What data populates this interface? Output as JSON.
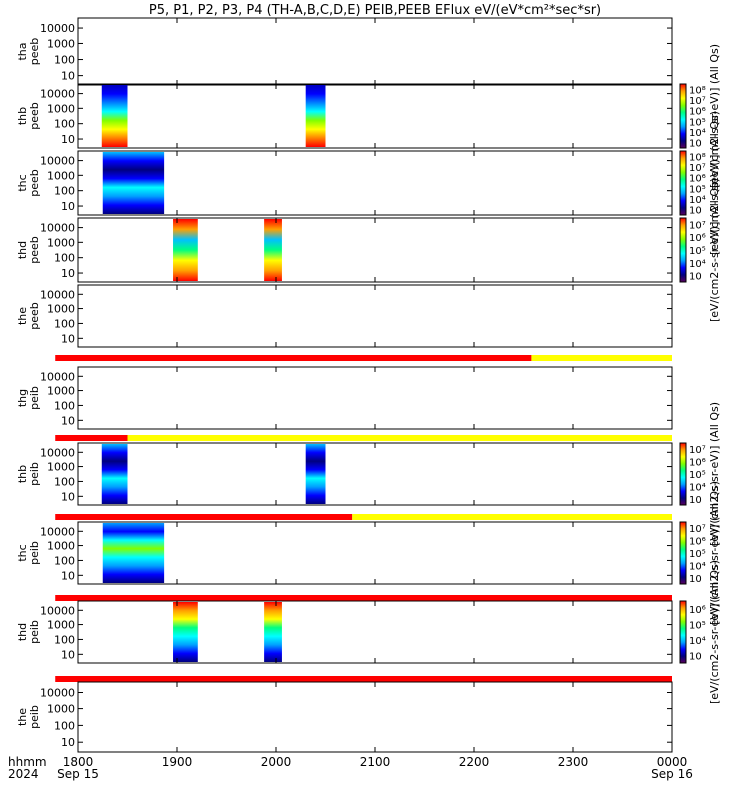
{
  "chart_data": {
    "type": "heatmap",
    "title": "P5, P1, P2, P3, P4 (TH-A,B,C,D,E) PEIB,PEEB EFlux eV/(eV*cm²*sec*sr)",
    "x_range": [
      1800,
      2400
    ],
    "x_ticks": [
      {
        "value": 1800,
        "label": "1800",
        "sub": "Sep 15"
      },
      {
        "value": 1900,
        "label": "1900",
        "sub": ""
      },
      {
        "value": 2000,
        "label": "2000",
        "sub": ""
      },
      {
        "value": 2100,
        "label": "2100",
        "sub": ""
      },
      {
        "value": 2200,
        "label": "2200",
        "sub": ""
      },
      {
        "value": 2300,
        "label": "2300",
        "sub": ""
      },
      {
        "value": 2400,
        "label": "0000",
        "sub": "Sep 16"
      }
    ],
    "x_label_line1": "hhmm",
    "x_label_line2": "2024",
    "y_ticks": [
      "10000",
      "1000",
      "100",
      "10"
    ],
    "panels": [
      {
        "probe": "tha",
        "species": "peeb",
        "blocks": [],
        "flags": [],
        "colorbar": null
      },
      {
        "probe": "thb",
        "species": "peeb",
        "blocks": [
          [
            1824,
            1850
          ],
          [
            2030,
            2050
          ]
        ],
        "flags": [],
        "colorbar": "eeb"
      },
      {
        "probe": "thc",
        "species": "peeb",
        "blocks": [
          [
            1825,
            1887
          ]
        ],
        "flags": [],
        "colorbar": "eeb"
      },
      {
        "probe": "thd",
        "species": "peeb",
        "blocks": [
          [
            1896,
            1921
          ],
          [
            1988,
            2006
          ]
        ],
        "flags": [],
        "colorbar": "eeb"
      },
      {
        "probe": "the",
        "species": "peeb",
        "blocks": [],
        "flags": [
          [
            1777,
            2258,
            "red"
          ],
          [
            2258,
            2400,
            "yellow"
          ]
        ],
        "colorbar": null
      },
      {
        "probe": "thg",
        "species": "peib",
        "blocks": [],
        "flags": [
          [
            1777,
            1850,
            "red"
          ],
          [
            1850,
            2400,
            "yellow"
          ]
        ],
        "colorbar": null
      },
      {
        "probe": "thb",
        "species": "peib",
        "blocks": [
          [
            1824,
            1850
          ],
          [
            2030,
            2050
          ]
        ],
        "flags": [
          [
            1777,
            2077,
            "red"
          ],
          [
            2077,
            2400,
            "yellow"
          ]
        ],
        "colorbar": "eib"
      },
      {
        "probe": "thc",
        "species": "peib",
        "blocks": [
          [
            1825,
            1887
          ]
        ],
        "flags": [
          [
            1777,
            2400,
            "red"
          ]
        ],
        "colorbar": "eib"
      },
      {
        "probe": "thd",
        "species": "peib",
        "blocks": [
          [
            1896,
            1921
          ],
          [
            1988,
            2006
          ]
        ],
        "flags": [
          [
            1777,
            2400,
            "red"
          ]
        ],
        "colorbar": "eib"
      },
      {
        "probe": "the",
        "species": "peib",
        "blocks": [],
        "flags": [],
        "colorbar": null
      }
    ],
    "colorbar_peeb": {
      "ticks": [
        "10⁸",
        "10⁷",
        "10⁶",
        "10⁵",
        "10⁴",
        "10⁳"
      ],
      "label": "[eV/(cm2-s-sr-eV)] (All Qs)"
    },
    "colorbar_peib": {
      "ticks": [
        "10⁷",
        "10⁶",
        "10⁵",
        "10⁴",
        "10⁳"
      ],
      "label": "[eV/(cm2-s-sr-eV)] (All Qs)"
    },
    "colormap": [
      "#5a005a",
      "#000080",
      "#0000ff",
      "#00a0ff",
      "#00ffff",
      "#00ff80",
      "#80ff00",
      "#ffff00",
      "#ffa000",
      "#ff0000"
    ]
  }
}
